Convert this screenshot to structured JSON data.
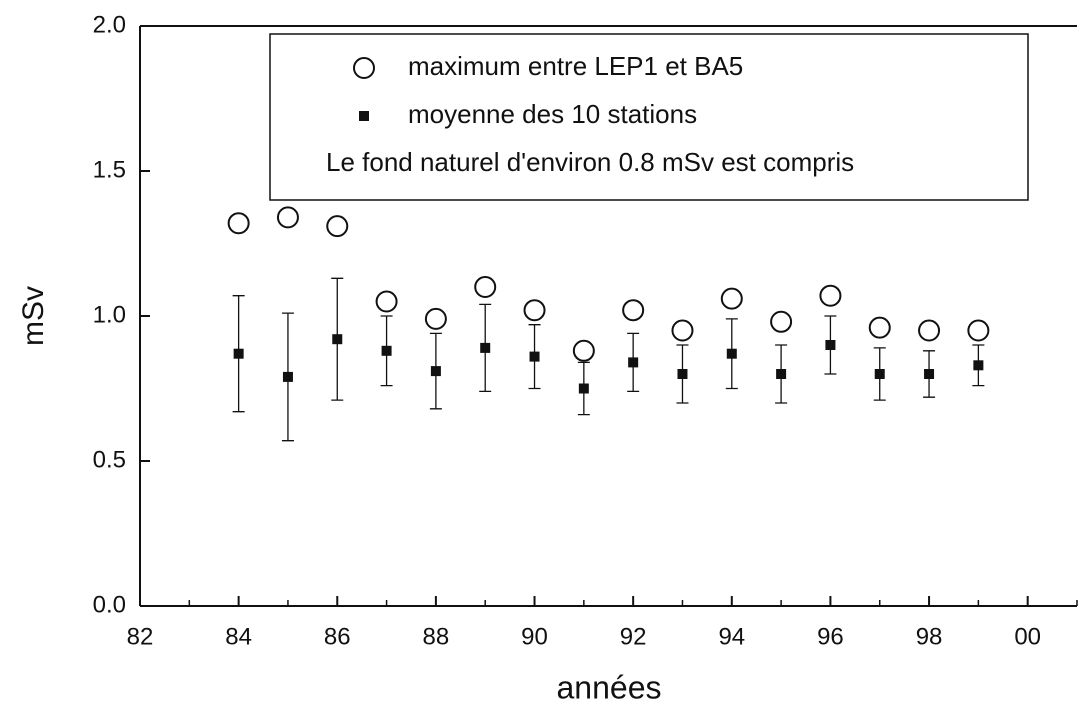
{
  "chart_data": {
    "type": "scatter",
    "x_label": "années",
    "y_label": "mSv",
    "x": [
      84,
      85,
      86,
      87,
      88,
      89,
      90,
      91,
      92,
      93,
      94,
      95,
      96,
      97,
      98,
      99
    ],
    "series": [
      {
        "name": "maximum entre LEP1 et BA5",
        "color": "#111111",
        "marker": "open-circle",
        "values": [
          1.32,
          1.34,
          1.31,
          1.05,
          0.99,
          1.1,
          1.02,
          0.88,
          1.02,
          0.95,
          1.06,
          0.98,
          1.07,
          0.96,
          0.95,
          0.95
        ]
      },
      {
        "name": "moyenne des 10 stations",
        "color": "#111111",
        "marker": "filled-square",
        "values": [
          0.87,
          0.79,
          0.92,
          0.88,
          0.81,
          0.89,
          0.86,
          0.75,
          0.84,
          0.8,
          0.87,
          0.8,
          0.9,
          0.8,
          0.8,
          0.83
        ],
        "errors": [
          0.2,
          0.22,
          0.21,
          0.12,
          0.13,
          0.15,
          0.11,
          0.09,
          0.1,
          0.1,
          0.12,
          0.1,
          0.1,
          0.09,
          0.08,
          0.07
        ]
      }
    ],
    "annotation": "Le fond naturel d'environ 0.8 mSv est compris",
    "xlim": [
      82,
      101
    ],
    "xticks": [
      82,
      84,
      86,
      88,
      90,
      92,
      94,
      96,
      98,
      {
        "value": 100,
        "label": "00"
      }
    ],
    "ylim": [
      0,
      2
    ],
    "yticks": [
      {
        "value": 0,
        "label": "0.0"
      },
      0.5,
      {
        "value": 1,
        "label": "1.0"
      },
      1.5,
      {
        "value": 2,
        "label": "2.0"
      }
    ],
    "grid": false,
    "legend": "upper right"
  }
}
